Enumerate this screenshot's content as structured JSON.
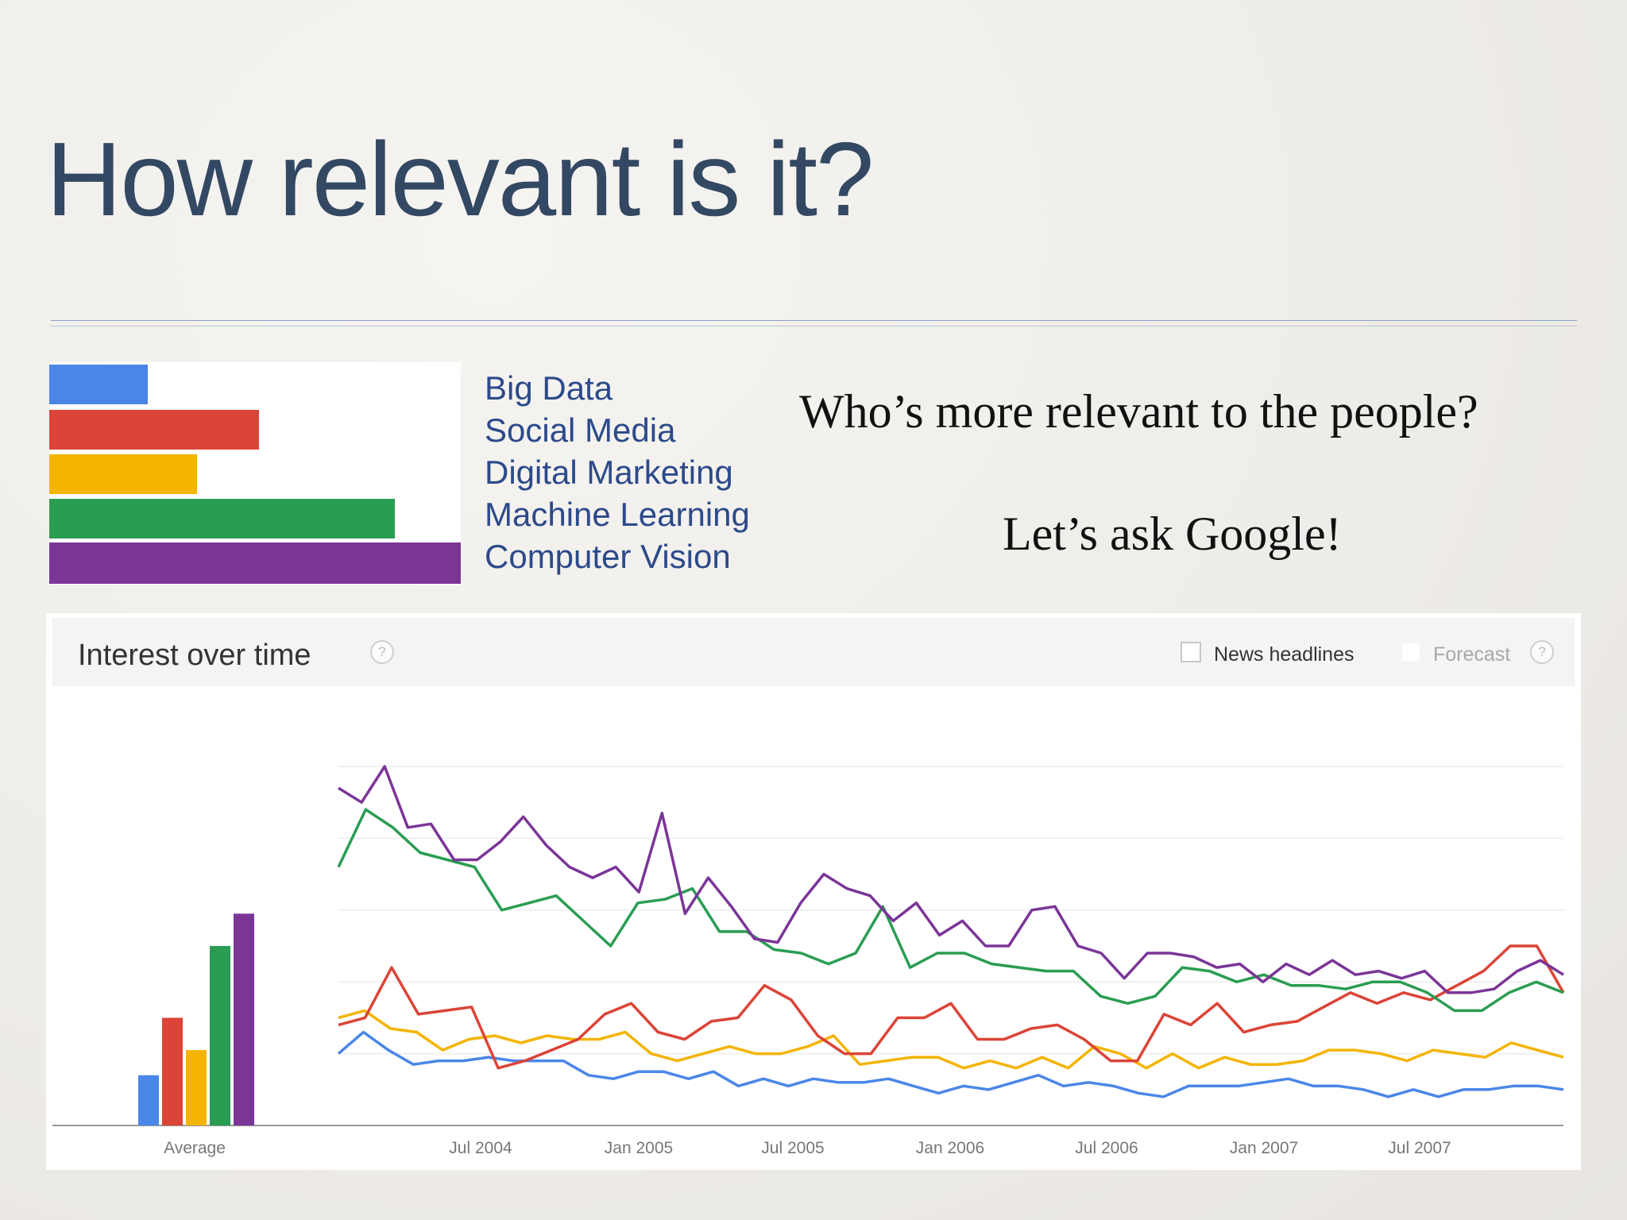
{
  "slide": {
    "title": "How relevant is it?",
    "question": "Who’s more relevant to the people?",
    "ask": "Let’s ask Google!"
  },
  "legend": {
    "items": [
      {
        "label": "Big Data",
        "color": "#4a86e8",
        "value": 0.24
      },
      {
        "label": "Social Media",
        "color": "#db4437",
        "value": 0.51
      },
      {
        "label": "Digital Marketing",
        "color": "#f4b400",
        "value": 0.36
      },
      {
        "label": "Machine Learning",
        "color": "#2a9d52",
        "value": 0.84
      },
      {
        "label": "Computer Vision",
        "color": "#7b3597",
        "value": 1.0
      }
    ]
  },
  "panel": {
    "title": "Interest over time",
    "help_glyph": "?",
    "news_label": "News headlines",
    "forecast_label": "Forecast"
  },
  "chart_data": {
    "type": "line",
    "title": "Interest over time",
    "x_ticks": [
      "Jul 2004",
      "Jan 2005",
      "Jul 2005",
      "Jan 2006",
      "Jul 2006",
      "Jan 2007",
      "Jul 2007"
    ],
    "average_label": "Average",
    "ylim": [
      0,
      100
    ],
    "grid": true,
    "average": [
      {
        "name": "Big Data",
        "value": 14
      },
      {
        "name": "Social Media",
        "value": 30
      },
      {
        "name": "Digital Marketing",
        "value": 21
      },
      {
        "name": "Machine Learning",
        "value": 50
      },
      {
        "name": "Computer Vision",
        "value": 59
      }
    ],
    "series": [
      {
        "name": "Computer Vision",
        "color": "#7b3597",
        "values": [
          94,
          90,
          100,
          83,
          84,
          74,
          74,
          79,
          86,
          78,
          72,
          69,
          72,
          65,
          87,
          59,
          69,
          61,
          52,
          51,
          62,
          70,
          66,
          64,
          57,
          62,
          53,
          57,
          50,
          50,
          60,
          61,
          50,
          48,
          41,
          48,
          48,
          47,
          44,
          45,
          40,
          45,
          42,
          46,
          42,
          43,
          41,
          43,
          37,
          37,
          38,
          43,
          46,
          42
        ]
      },
      {
        "name": "Machine Learning",
        "color": "#2a9d52",
        "values": [
          72,
          88,
          83,
          76,
          74,
          72,
          60,
          62,
          64,
          57,
          50,
          62,
          63,
          66,
          54,
          54,
          49,
          48,
          45,
          48,
          61,
          44,
          48,
          48,
          45,
          44,
          43,
          43,
          36,
          34,
          36,
          44,
          43,
          40,
          42,
          39,
          39,
          38,
          40,
          40,
          37,
          32,
          32,
          37,
          40,
          37
        ]
      },
      {
        "name": "Social Media",
        "color": "#db4437",
        "values": [
          28,
          30,
          44,
          31,
          32,
          33,
          16,
          18,
          21,
          24,
          31,
          34,
          26,
          24,
          29,
          30,
          39,
          35,
          25,
          20,
          20,
          30,
          30,
          34,
          24,
          24,
          27,
          28,
          24,
          18,
          18,
          31,
          28,
          34,
          26,
          28,
          29,
          33,
          37,
          34,
          37,
          35,
          39,
          43,
          50,
          50,
          37
        ]
      },
      {
        "name": "Digital Marketing",
        "color": "#f4b400",
        "values": [
          30,
          32,
          27,
          26,
          21,
          24,
          25,
          23,
          25,
          24,
          24,
          26,
          20,
          18,
          20,
          22,
          20,
          20,
          22,
          25,
          17,
          18,
          19,
          19,
          16,
          18,
          16,
          19,
          16,
          22,
          20,
          16,
          20,
          16,
          19,
          17,
          17,
          18,
          21,
          21,
          20,
          18,
          21,
          20,
          19,
          23,
          21,
          19
        ]
      },
      {
        "name": "Big Data",
        "color": "#4a86e8",
        "values": [
          20,
          26,
          21,
          17,
          18,
          18,
          19,
          18,
          18,
          18,
          14,
          13,
          15,
          15,
          13,
          15,
          11,
          13,
          11,
          13,
          12,
          12,
          13,
          11,
          9,
          11,
          10,
          12,
          14,
          11,
          12,
          11,
          9,
          8,
          11,
          11,
          11,
          12,
          13,
          11,
          11,
          10,
          8,
          10,
          8,
          10,
          10,
          11,
          11,
          10
        ]
      }
    ]
  }
}
